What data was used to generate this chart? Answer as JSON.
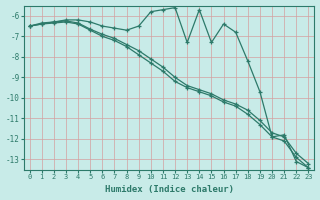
{
  "background_color": "#c8ebe8",
  "grid_color": "#e8b8b8",
  "line_color": "#2d7a6a",
  "marker": "+",
  "xlabel": "Humidex (Indice chaleur)",
  "xlim": [
    -0.5,
    23.5
  ],
  "ylim": [
    -13.5,
    -5.5
  ],
  "yticks": [
    -13,
    -12,
    -11,
    -10,
    -9,
    -8,
    -7,
    -6
  ],
  "xticks": [
    0,
    1,
    2,
    3,
    4,
    5,
    6,
    7,
    8,
    9,
    10,
    11,
    12,
    13,
    14,
    15,
    16,
    17,
    18,
    19,
    20,
    21,
    22,
    23
  ],
  "series1_x": [
    0,
    1,
    2,
    3,
    4,
    5,
    6,
    7,
    8,
    9,
    10,
    11,
    12,
    13,
    14,
    15,
    16,
    17,
    18,
    19,
    20,
    21,
    22,
    23
  ],
  "series1_y": [
    -6.5,
    -6.4,
    -6.3,
    -6.2,
    -6.2,
    -6.3,
    -6.5,
    -6.6,
    -6.7,
    -6.5,
    -5.8,
    -5.7,
    -5.6,
    -7.3,
    -5.7,
    -7.3,
    -6.4,
    -6.8,
    -8.2,
    -9.7,
    -11.9,
    -11.8,
    -13.1,
    -13.4
  ],
  "series2_x": [
    0,
    1,
    2,
    3,
    4,
    5,
    6,
    7,
    8,
    9,
    10,
    11,
    12,
    13,
    14,
    15,
    16,
    17,
    18,
    19,
    20,
    21,
    22,
    23
  ],
  "series2_y": [
    -6.5,
    -6.4,
    -6.35,
    -6.3,
    -6.4,
    -6.7,
    -7.0,
    -7.2,
    -7.5,
    -7.9,
    -8.3,
    -8.7,
    -9.2,
    -9.5,
    -9.7,
    -9.9,
    -10.2,
    -10.4,
    -10.8,
    -11.3,
    -11.9,
    -12.1,
    -12.9,
    -13.4
  ],
  "series3_x": [
    0,
    1,
    2,
    3,
    4,
    5,
    6,
    7,
    8,
    9,
    10,
    11,
    12,
    13,
    14,
    15,
    16,
    17,
    18,
    19,
    20,
    21,
    22,
    23
  ],
  "series3_y": [
    -6.5,
    -6.35,
    -6.3,
    -6.25,
    -6.35,
    -6.65,
    -6.9,
    -7.1,
    -7.4,
    -7.7,
    -8.1,
    -8.5,
    -9.0,
    -9.4,
    -9.6,
    -9.8,
    -10.1,
    -10.3,
    -10.6,
    -11.1,
    -11.7,
    -11.9,
    -12.7,
    -13.2
  ]
}
